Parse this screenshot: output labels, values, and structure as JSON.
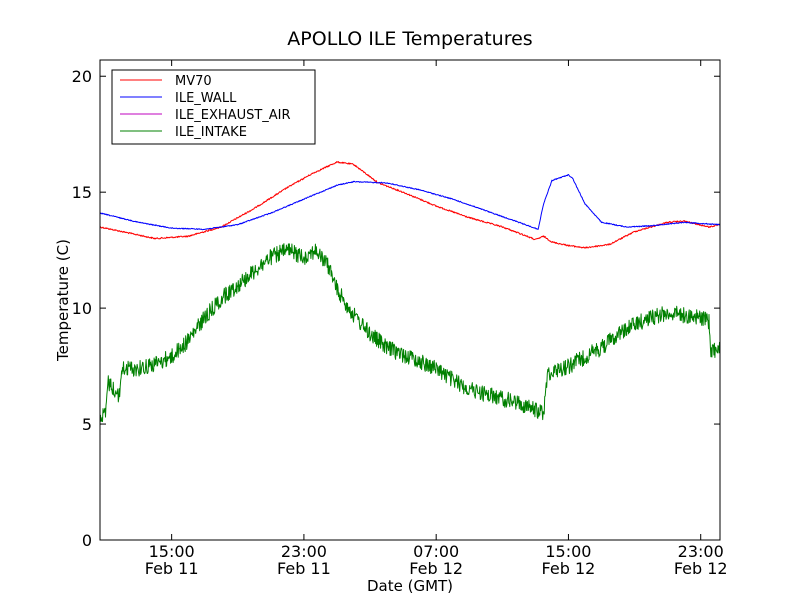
{
  "chart_data": {
    "type": "line",
    "title": "APOLLO ILE Temperatures",
    "xlabel": "Date (GMT)",
    "ylabel": "Temperature (C)",
    "xlim": [
      "2011-02-11 10:40",
      "2011-02-13 00:10"
    ],
    "ylim": [
      0,
      20.7
    ],
    "x_ticks": [
      {
        "t": "2011-02-11 15:00",
        "time": "15:00",
        "date": "Feb 11"
      },
      {
        "t": "2011-02-11 23:00",
        "time": "23:00",
        "date": "Feb 11"
      },
      {
        "t": "2011-02-12 07:00",
        "time": "07:00",
        "date": "Feb 12"
      },
      {
        "t": "2011-02-12 15:00",
        "time": "15:00",
        "date": "Feb 12"
      },
      {
        "t": "2011-02-12 23:00",
        "time": "23:00",
        "date": "Feb 12"
      }
    ],
    "y_ticks": [
      "0",
      "5",
      "10",
      "15",
      "20"
    ],
    "legend_position": "top-left",
    "series": [
      {
        "name": "MV70",
        "color": "#ff0000",
        "noise": 0.03,
        "points": [
          [
            "2011-02-11 10:40",
            13.5
          ],
          [
            "2011-02-11 12:00",
            13.3
          ],
          [
            "2011-02-11 14:00",
            13.0
          ],
          [
            "2011-02-11 16:00",
            13.1
          ],
          [
            "2011-02-11 18:00",
            13.5
          ],
          [
            "2011-02-11 20:00",
            14.3
          ],
          [
            "2011-02-11 22:00",
            15.2
          ],
          [
            "2011-02-11 23:30",
            15.8
          ],
          [
            "2011-02-12 01:00",
            16.3
          ],
          [
            "2011-02-12 02:00",
            16.2
          ],
          [
            "2011-02-12 03:30",
            15.4
          ],
          [
            "2011-02-12 05:00",
            15.0
          ],
          [
            "2011-02-12 07:00",
            14.4
          ],
          [
            "2011-02-12 09:00",
            13.9
          ],
          [
            "2011-02-12 11:00",
            13.5
          ],
          [
            "2011-02-12 12:30",
            13.1
          ],
          [
            "2011-02-12 13:00",
            12.95
          ],
          [
            "2011-02-12 13:30",
            13.1
          ],
          [
            "2011-02-12 14:00",
            12.85
          ],
          [
            "2011-02-12 15:00",
            12.7
          ],
          [
            "2011-02-12 16:00",
            12.6
          ],
          [
            "2011-02-12 17:30",
            12.75
          ],
          [
            "2011-02-12 19:00",
            13.3
          ],
          [
            "2011-02-12 21:00",
            13.7
          ],
          [
            "2011-02-12 22:00",
            13.75
          ],
          [
            "2011-02-12 23:30",
            13.5
          ],
          [
            "2011-02-13 00:10",
            13.6
          ]
        ]
      },
      {
        "name": "ILE_WALL",
        "color": "#0000ff",
        "noise": 0.02,
        "points": [
          [
            "2011-02-11 10:40",
            14.1
          ],
          [
            "2011-02-11 13:00",
            13.7
          ],
          [
            "2011-02-11 15:00",
            13.45
          ],
          [
            "2011-02-11 17:00",
            13.4
          ],
          [
            "2011-02-11 19:00",
            13.6
          ],
          [
            "2011-02-11 21:00",
            14.1
          ],
          [
            "2011-02-11 23:00",
            14.7
          ],
          [
            "2011-02-12 01:00",
            15.3
          ],
          [
            "2011-02-12 02:00",
            15.45
          ],
          [
            "2011-02-12 04:00",
            15.4
          ],
          [
            "2011-02-12 06:00",
            15.1
          ],
          [
            "2011-02-12 08:00",
            14.7
          ],
          [
            "2011-02-12 10:00",
            14.2
          ],
          [
            "2011-02-12 12:00",
            13.7
          ],
          [
            "2011-02-12 13:10",
            13.4
          ],
          [
            "2011-02-12 13:30",
            14.5
          ],
          [
            "2011-02-12 14:00",
            15.5
          ],
          [
            "2011-02-12 15:00",
            15.75
          ],
          [
            "2011-02-12 15:15",
            15.6
          ],
          [
            "2011-02-12 16:00",
            14.5
          ],
          [
            "2011-02-12 17:00",
            13.7
          ],
          [
            "2011-02-12 18:30",
            13.5
          ],
          [
            "2011-02-12 20:00",
            13.55
          ],
          [
            "2011-02-12 22:00",
            13.7
          ],
          [
            "2011-02-13 00:10",
            13.6
          ]
        ]
      },
      {
        "name": "ILE_EXHAUST_AIR",
        "color": "#bf00bf",
        "noise": 0,
        "points": []
      },
      {
        "name": "ILE_INTAKE",
        "color": "#008000",
        "noise": 0.35,
        "points": [
          [
            "2011-02-11 10:40",
            5.3
          ],
          [
            "2011-02-11 11:00",
            5.4
          ],
          [
            "2011-02-11 11:10",
            6.8
          ],
          [
            "2011-02-11 11:50",
            6.2
          ],
          [
            "2011-02-11 12:00",
            7.4
          ],
          [
            "2011-02-11 13:00",
            7.4
          ],
          [
            "2011-02-11 14:00",
            7.6
          ],
          [
            "2011-02-11 15:00",
            7.9
          ],
          [
            "2011-02-11 16:00",
            8.6
          ],
          [
            "2011-02-11 17:00",
            9.6
          ],
          [
            "2011-02-11 18:00",
            10.4
          ],
          [
            "2011-02-11 19:00",
            11.0
          ],
          [
            "2011-02-11 20:00",
            11.6
          ],
          [
            "2011-02-11 21:00",
            12.2
          ],
          [
            "2011-02-11 22:00",
            12.5
          ],
          [
            "2011-02-11 23:00",
            12.2
          ],
          [
            "2011-02-11 23:40",
            12.5
          ],
          [
            "2011-02-12 00:30",
            11.8
          ],
          [
            "2011-02-12 01:00",
            10.8
          ],
          [
            "2011-02-12 02:00",
            9.7
          ],
          [
            "2011-02-12 03:00",
            8.9
          ],
          [
            "2011-02-12 04:00",
            8.3
          ],
          [
            "2011-02-12 05:00",
            8.0
          ],
          [
            "2011-02-12 06:00",
            7.7
          ],
          [
            "2011-02-12 07:00",
            7.4
          ],
          [
            "2011-02-12 08:00",
            6.9
          ],
          [
            "2011-02-12 09:00",
            6.5
          ],
          [
            "2011-02-12 10:00",
            6.3
          ],
          [
            "2011-02-12 11:00",
            6.1
          ],
          [
            "2011-02-12 12:00",
            5.9
          ],
          [
            "2011-02-12 13:00",
            5.6
          ],
          [
            "2011-02-12 13:30",
            5.5
          ],
          [
            "2011-02-12 13:45",
            7.2
          ],
          [
            "2011-02-12 15:00",
            7.5
          ],
          [
            "2011-02-12 16:00",
            7.9
          ],
          [
            "2011-02-12 17:00",
            8.3
          ],
          [
            "2011-02-12 18:00",
            8.9
          ],
          [
            "2011-02-12 19:00",
            9.3
          ],
          [
            "2011-02-12 20:00",
            9.6
          ],
          [
            "2011-02-12 21:00",
            9.8
          ],
          [
            "2011-02-12 22:00",
            9.7
          ],
          [
            "2011-02-12 23:00",
            9.6
          ],
          [
            "2011-02-12 23:30",
            9.4
          ],
          [
            "2011-02-12 23:35",
            8.2
          ],
          [
            "2011-02-13 00:10",
            8.2
          ]
        ]
      }
    ]
  }
}
